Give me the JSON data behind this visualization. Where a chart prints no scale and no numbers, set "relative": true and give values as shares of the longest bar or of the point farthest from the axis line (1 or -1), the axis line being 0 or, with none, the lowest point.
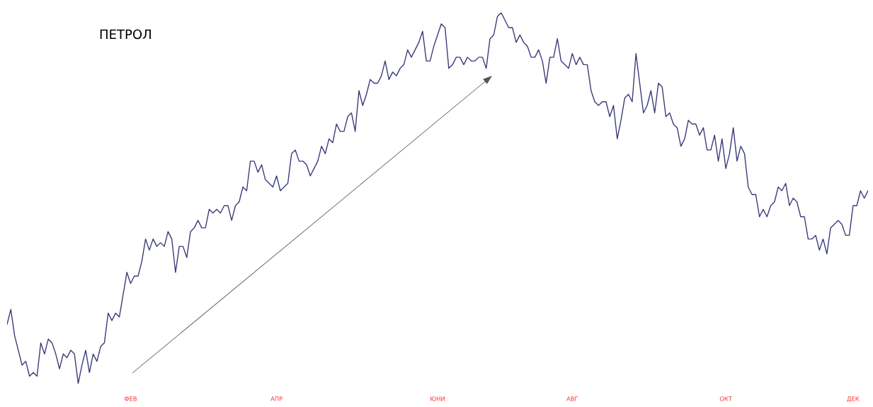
{
  "chart_data": {
    "type": "line",
    "title": "ПЕТРОЛ",
    "relative": true,
    "tick_labels": "x",
    "categories": [
      null,
      null,
      null,
      null,
      null,
      null,
      null,
      null,
      null,
      null,
      null,
      null,
      null,
      null,
      null,
      null,
      null,
      null,
      null,
      null,
      null,
      null,
      null,
      null,
      null,
      null,
      null,
      null,
      null,
      null,
      null,
      null,
      null,
      "ФЕВ",
      null,
      null,
      null,
      null,
      null,
      null,
      null,
      null,
      null,
      null,
      null,
      null,
      null,
      null,
      null,
      null,
      null,
      null,
      null,
      null,
      null,
      null,
      null,
      null,
      null,
      null,
      null,
      null,
      null,
      null,
      null,
      null,
      null,
      null,
      null,
      null,
      null,
      null,
      "АПР",
      null,
      null,
      null,
      null,
      null,
      null,
      null,
      null,
      null,
      null,
      null,
      null,
      null,
      null,
      null,
      null,
      null,
      null,
      null,
      null,
      null,
      null,
      null,
      null,
      null,
      null,
      null,
      null,
      null,
      null,
      null,
      null,
      null,
      null,
      null,
      null,
      null,
      null,
      null,
      null,
      null,
      null,
      "ЮНИ",
      null,
      null,
      null,
      null,
      null,
      null,
      null,
      null,
      null,
      null,
      null,
      null,
      null,
      null,
      null,
      null,
      null,
      null,
      null,
      null,
      null,
      null,
      null,
      null,
      null,
      null,
      null,
      null,
      null,
      null,
      null,
      null,
      null,
      null,
      null,
      "АВГ",
      null,
      null,
      null,
      null,
      null,
      null,
      null,
      null,
      null,
      null,
      null,
      null,
      null,
      null,
      null,
      null,
      null,
      null,
      null,
      null,
      null,
      null,
      null,
      null,
      null,
      null,
      null,
      null,
      null,
      null,
      null,
      null,
      null,
      null,
      null,
      null,
      null,
      null,
      null,
      null,
      "ОКТ",
      null,
      null,
      null,
      null,
      null,
      null,
      null,
      null,
      null,
      null,
      null,
      null,
      null,
      null,
      null,
      null,
      null,
      null,
      null,
      null,
      null,
      null,
      null,
      null,
      null,
      null,
      null,
      null,
      null,
      null,
      null,
      null,
      null,
      "ДЕК",
      null,
      null,
      null,
      null
    ],
    "series": [
      {
        "color": "#3b3b7a",
        "values": [
          0.16,
          0.2,
          0.13,
          0.09,
          0.05,
          0.06,
          0.02,
          0.03,
          0.02,
          0.11,
          0.08,
          0.12,
          0.11,
          0.08,
          0.04,
          0.08,
          0.07,
          0.09,
          0.08,
          0,
          0.05,
          0.09,
          0.03,
          0.08,
          0.06,
          0.1,
          0.11,
          0.19,
          0.17,
          0.19,
          0.18,
          0.24,
          0.3,
          0.27,
          0.29,
          0.29,
          0.33,
          0.39,
          0.36,
          0.39,
          0.37,
          0.38,
          0.37,
          0.41,
          0.39,
          0.3,
          0.37,
          0.37,
          0.34,
          0.41,
          0.42,
          0.44,
          0.42,
          0.42,
          0.47,
          0.46,
          0.47,
          0.46,
          0.48,
          0.48,
          0.44,
          0.48,
          0.49,
          0.53,
          0.52,
          0.6,
          0.6,
          0.57,
          0.59,
          0.55,
          0.54,
          0.53,
          0.56,
          0.52,
          0.53,
          0.54,
          0.62,
          0.63,
          0.6,
          0.6,
          0.59,
          0.56,
          0.58,
          0.6,
          0.64,
          0.62,
          0.66,
          0.65,
          0.7,
          0.68,
          0.68,
          0.72,
          0.73,
          0.68,
          0.79,
          0.75,
          0.78,
          0.82,
          0.81,
          0.81,
          0.83,
          0.87,
          0.82,
          0.84,
          0.83,
          0.85,
          0.86,
          0.9,
          0.88,
          0.9,
          0.92,
          0.95,
          0.87,
          0.87,
          0.91,
          0.94,
          0.97,
          0.96,
          0.85,
          0.86,
          0.88,
          0.88,
          0.86,
          0.88,
          0.87,
          0.87,
          0.88,
          0.88,
          0.85,
          0.93,
          0.94,
          0.99,
          1.0,
          0.98,
          0.96,
          0.96,
          0.92,
          0.94,
          0.92,
          0.91,
          0.88,
          0.88,
          0.9,
          0.87,
          0.81,
          0.88,
          0.88,
          0.93,
          0.87,
          0.86,
          0.85,
          0.89,
          0.86,
          0.88,
          0.86,
          0.86,
          0.79,
          0.76,
          0.75,
          0.76,
          0.76,
          0.72,
          0.75,
          0.66,
          0.71,
          0.77,
          0.78,
          0.76,
          0.89,
          0.81,
          0.73,
          0.75,
          0.79,
          0.73,
          0.81,
          0.8,
          0.72,
          0.73,
          0.7,
          0.69,
          0.64,
          0.66,
          0.71,
          0.7,
          0.7,
          0.67,
          0.69,
          0.63,
          0.63,
          0.67,
          0.6,
          0.66,
          0.58,
          0.62,
          0.69,
          0.6,
          0.64,
          0.62,
          0.53,
          0.51,
          0.51,
          0.45,
          0.47,
          0.45,
          0.48,
          0.49,
          0.53,
          0.52,
          0.54,
          0.48,
          0.5,
          0.49,
          0.45,
          0.45,
          0.39,
          0.39,
          0.4,
          0.36,
          0.39,
          0.35,
          0.42,
          0.43,
          0.44,
          0.43,
          0.4,
          0.4,
          0.48,
          0.48,
          0.52,
          0.5,
          0.52
        ]
      }
    ]
  }
}
